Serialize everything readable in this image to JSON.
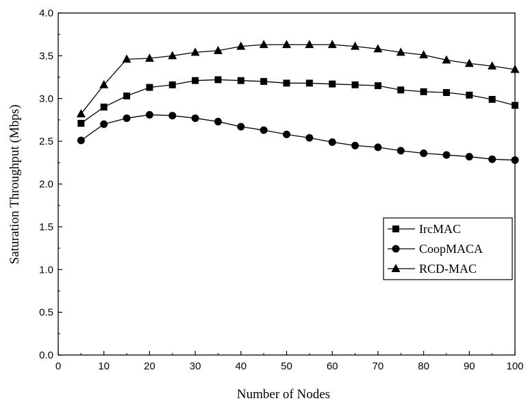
{
  "chart_data": {
    "type": "line",
    "title": "",
    "xlabel": "Number of Nodes",
    "ylabel": "Saturation Throughput (Mbps)",
    "xlim": [
      0,
      100
    ],
    "ylim": [
      0.0,
      4.0
    ],
    "xticks": [
      0,
      10,
      20,
      30,
      40,
      50,
      60,
      70,
      80,
      90,
      100
    ],
    "xtick_labels": [
      "0",
      "10",
      "20",
      "30",
      "40",
      "50",
      "60",
      "70",
      "80",
      "90",
      "100"
    ],
    "yticks": [
      0.0,
      0.5,
      1.0,
      1.5,
      2.0,
      2.5,
      3.0,
      3.5,
      4.0
    ],
    "ytick_labels": [
      "0.0",
      "0.5",
      "1.0",
      "1.5",
      "2.0",
      "2.5",
      "3.0",
      "3.5",
      "4.0"
    ],
    "grid": false,
    "legend_position": "right",
    "x": [
      5,
      10,
      15,
      20,
      25,
      30,
      35,
      40,
      45,
      50,
      55,
      60,
      65,
      70,
      75,
      80,
      85,
      90,
      95,
      100
    ],
    "series": [
      {
        "name": "IrcMAC",
        "marker": "square",
        "values": [
          2.71,
          2.9,
          3.03,
          3.13,
          3.16,
          3.21,
          3.22,
          3.21,
          3.2,
          3.18,
          3.18,
          3.17,
          3.16,
          3.15,
          3.1,
          3.08,
          3.07,
          3.04,
          2.99,
          2.92
        ]
      },
      {
        "name": "CoopMACA",
        "marker": "circle",
        "values": [
          2.51,
          2.7,
          2.77,
          2.81,
          2.8,
          2.77,
          2.73,
          2.67,
          2.63,
          2.58,
          2.54,
          2.49,
          2.45,
          2.43,
          2.39,
          2.36,
          2.34,
          2.32,
          2.29,
          2.28
        ]
      },
      {
        "name": "RCD-MAC",
        "marker": "triangle",
        "values": [
          2.82,
          3.16,
          3.46,
          3.47,
          3.5,
          3.54,
          3.56,
          3.61,
          3.63,
          3.63,
          3.63,
          3.63,
          3.61,
          3.58,
          3.54,
          3.51,
          3.45,
          3.41,
          3.38,
          3.34
        ]
      }
    ]
  }
}
